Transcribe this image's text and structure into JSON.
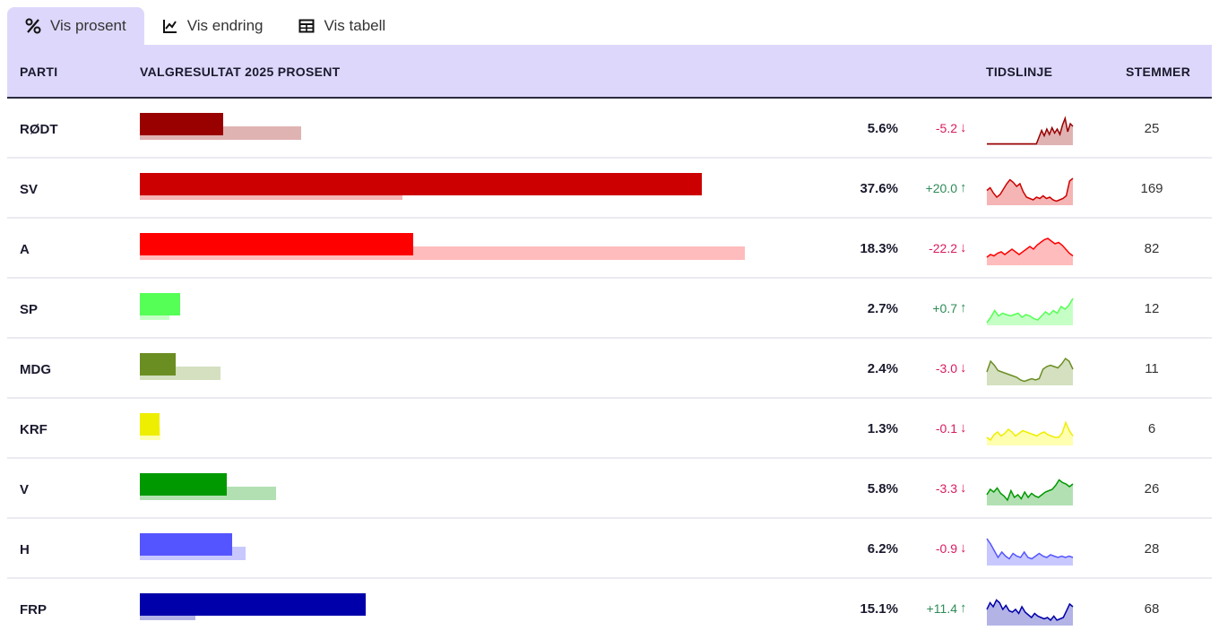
{
  "tabs": [
    {
      "label": "Vis prosent",
      "icon": "percent-icon",
      "active": true
    },
    {
      "label": "Vis endring",
      "icon": "line-chart-icon",
      "active": false
    },
    {
      "label": "Vis tabell",
      "icon": "table-icon",
      "active": false
    }
  ],
  "header": {
    "party": "PARTI",
    "result": "VALGRESULTAT 2025 PROSENT",
    "timeline": "TIDSLINJE",
    "votes": "STEMMER"
  },
  "chart_data": {
    "type": "bar",
    "categories": [
      "RØDT",
      "SV",
      "A",
      "SP",
      "MDG",
      "KRF",
      "V",
      "H",
      "FRP"
    ],
    "series": [
      {
        "values": [
          5.6,
          37.6,
          18.3,
          2.7,
          2.4,
          1.3,
          5.8,
          6.2,
          15.1
        ]
      },
      {
        "values": [
          10.8,
          17.6,
          40.5,
          2.0,
          5.4,
          1.4,
          9.1,
          7.1,
          3.7
        ]
      }
    ]
  },
  "rows": [
    {
      "party": "RØDT",
      "pct": "5.6%",
      "change": "-5.2",
      "dir": "down",
      "votes": "25",
      "value": 5.6,
      "prev": 10.8,
      "color": "#990000",
      "light": "#e0b3b3",
      "spark": [
        0.05,
        0.05,
        0.05,
        0.05,
        0.05,
        0.05,
        0.05,
        0.05,
        0.05,
        0.05,
        0.05,
        0.05,
        0.05,
        0.05,
        0.05,
        0.05,
        0.05,
        0.05,
        0.05,
        0.05,
        0.3,
        0.55,
        0.35,
        0.6,
        0.4,
        0.65,
        0.45,
        0.6,
        0.4,
        0.75,
        1.0,
        0.5,
        0.8,
        0.7
      ]
    },
    {
      "party": "SV",
      "pct": "37.6%",
      "change": "+20.0",
      "dir": "up",
      "votes": "169",
      "value": 37.6,
      "prev": 17.6,
      "color": "#cc0000",
      "light": "#f5b5b5",
      "spark": [
        0.55,
        0.65,
        0.45,
        0.3,
        0.4,
        0.6,
        0.8,
        0.95,
        0.85,
        0.7,
        0.8,
        0.5,
        0.3,
        0.25,
        0.2,
        0.3,
        0.25,
        0.35,
        0.25,
        0.3,
        0.2,
        0.15,
        0.2,
        0.25,
        0.35,
        0.9,
        1.0
      ]
    },
    {
      "party": "A",
      "pct": "18.3%",
      "change": "-22.2",
      "dir": "down",
      "votes": "82",
      "value": 18.3,
      "prev": 40.5,
      "color": "#ff0000",
      "light": "#ffbcbc",
      "spark": [
        0.3,
        0.4,
        0.35,
        0.45,
        0.5,
        0.4,
        0.5,
        0.6,
        0.5,
        0.4,
        0.5,
        0.6,
        0.7,
        0.6,
        0.75,
        0.85,
        0.95,
        1.0,
        0.9,
        0.8,
        0.85,
        0.75,
        0.6,
        0.45,
        0.35
      ]
    },
    {
      "party": "SP",
      "pct": "2.7%",
      "change": "+0.7",
      "dir": "up",
      "votes": "12",
      "value": 2.7,
      "prev": 2.0,
      "color": "#55ff55",
      "light": "#c6ffc6",
      "spark": [
        0.1,
        0.3,
        0.55,
        0.35,
        0.45,
        0.4,
        0.35,
        0.4,
        0.45,
        0.3,
        0.4,
        0.35,
        0.25,
        0.2,
        0.35,
        0.5,
        0.4,
        0.55,
        0.45,
        0.7,
        0.6,
        0.75,
        1.0
      ]
    },
    {
      "party": "MDG",
      "pct": "2.4%",
      "change": "-3.0",
      "dir": "down",
      "votes": "11",
      "value": 2.4,
      "prev": 5.4,
      "color": "#6b8e23",
      "light": "#d4e0c0",
      "spark": [
        0.5,
        0.9,
        0.75,
        0.55,
        0.5,
        0.45,
        0.4,
        0.35,
        0.3,
        0.2,
        0.15,
        0.2,
        0.25,
        0.2,
        0.25,
        0.6,
        0.7,
        0.75,
        0.7,
        0.65,
        0.8,
        1.0,
        0.9,
        0.6
      ]
    },
    {
      "party": "KRF",
      "pct": "1.3%",
      "change": "-0.1",
      "dir": "down",
      "votes": "6",
      "value": 1.3,
      "prev": 1.4,
      "color": "#eeee00",
      "light": "#ffffb0",
      "spark": [
        0.3,
        0.2,
        0.4,
        0.5,
        0.35,
        0.45,
        0.6,
        0.5,
        0.35,
        0.45,
        0.55,
        0.5,
        0.45,
        0.4,
        0.35,
        0.45,
        0.5,
        0.4,
        0.35,
        0.3,
        0.3,
        0.45,
        0.85,
        0.55,
        0.35
      ]
    },
    {
      "party": "V",
      "pct": "5.8%",
      "change": "-3.3",
      "dir": "down",
      "votes": "26",
      "value": 5.8,
      "prev": 9.1,
      "color": "#009900",
      "light": "#b3e0b3",
      "spark": [
        0.4,
        0.6,
        0.5,
        0.65,
        0.45,
        0.35,
        0.2,
        0.55,
        0.3,
        0.4,
        0.25,
        0.5,
        0.3,
        0.45,
        0.35,
        0.3,
        0.4,
        0.5,
        0.55,
        0.6,
        0.75,
        0.95,
        0.85,
        0.8,
        0.7,
        0.8
      ]
    },
    {
      "party": "H",
      "pct": "6.2%",
      "change": "-0.9",
      "dir": "down",
      "votes": "28",
      "value": 6.2,
      "prev": 7.1,
      "color": "#5555ff",
      "light": "#c8c8ff",
      "spark": [
        1.0,
        0.8,
        0.55,
        0.3,
        0.5,
        0.35,
        0.25,
        0.45,
        0.35,
        0.3,
        0.5,
        0.3,
        0.25,
        0.35,
        0.45,
        0.35,
        0.3,
        0.4,
        0.35,
        0.3,
        0.35,
        0.3,
        0.35,
        0.3
      ]
    },
    {
      "party": "FRP",
      "pct": "15.1%",
      "change": "+11.4",
      "dir": "up",
      "votes": "68",
      "value": 15.1,
      "prev": 3.7,
      "color": "#0000aa",
      "light": "#b3b3e6",
      "spark": [
        0.6,
        0.85,
        0.7,
        0.95,
        0.85,
        0.6,
        0.75,
        0.55,
        0.5,
        0.6,
        0.45,
        0.7,
        0.5,
        0.4,
        0.3,
        0.45,
        0.35,
        0.3,
        0.25,
        0.3,
        0.2,
        0.35,
        0.2,
        0.25,
        0.3,
        0.55,
        0.8,
        0.7
      ]
    }
  ]
}
